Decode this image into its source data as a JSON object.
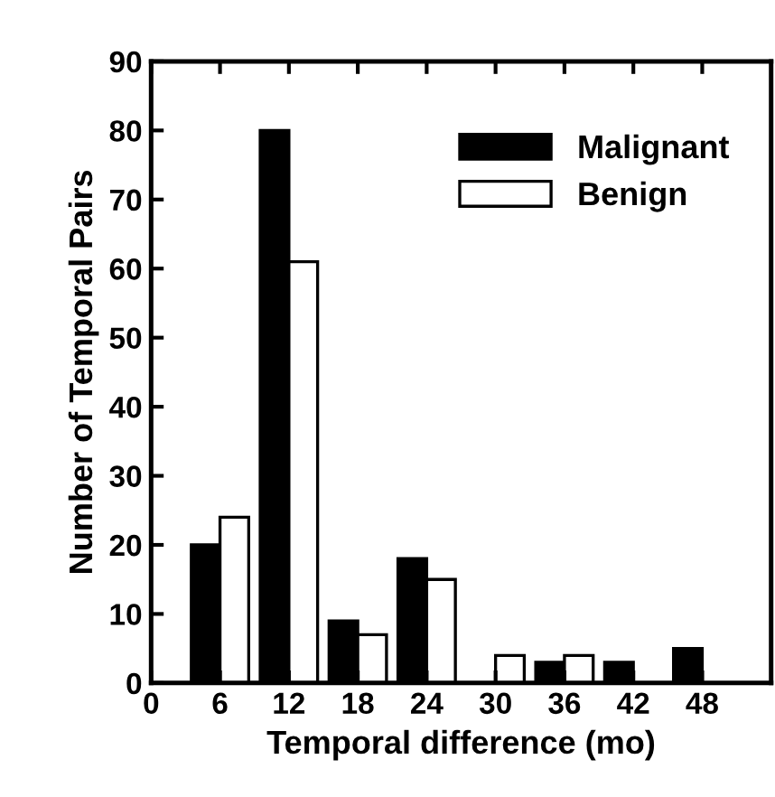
{
  "chart_data": {
    "type": "bar",
    "xlabel": "Temporal difference (mo)",
    "ylabel": "Number of Temporal Pairs",
    "x": [
      6,
      12,
      18,
      24,
      30,
      36,
      42,
      48
    ],
    "series": [
      {
        "name": "Malignant",
        "color": "#000000",
        "values": [
          20,
          80,
          9,
          18,
          0,
          3,
          3,
          5
        ]
      },
      {
        "name": "Benign",
        "color": "#ffffff",
        "values": [
          24,
          61,
          7,
          15,
          4,
          4,
          0,
          0
        ]
      }
    ],
    "xlim": [
      0,
      54
    ],
    "xticks": [
      0,
      6,
      12,
      18,
      24,
      30,
      36,
      42,
      48
    ],
    "ylim": [
      0,
      90
    ],
    "yticks": [
      0,
      10,
      20,
      30,
      40,
      50,
      60,
      70,
      80,
      90
    ],
    "grid": false,
    "legend": "top right"
  }
}
